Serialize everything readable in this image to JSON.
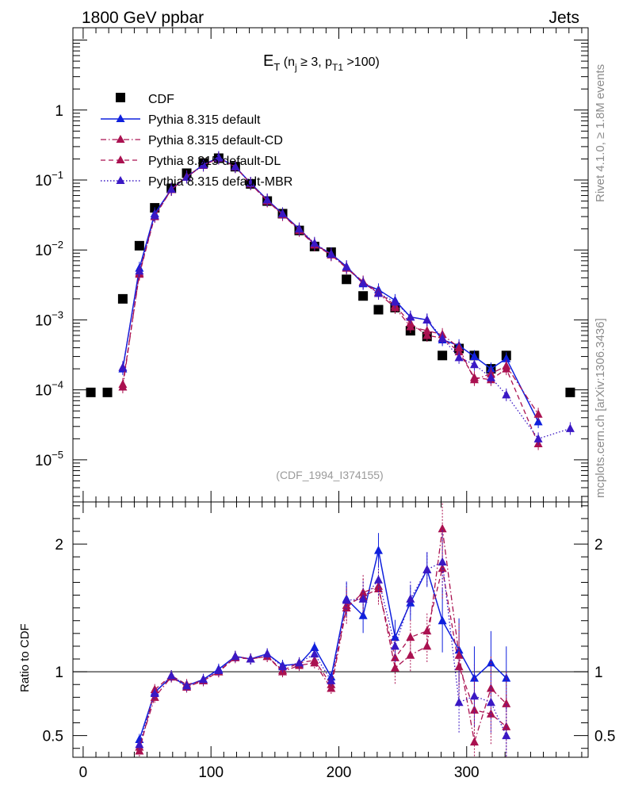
{
  "header": {
    "left": "1800 GeV ppbar",
    "right": "Jets"
  },
  "side_text": {
    "top": "Rivet 4.1.0, ≥ 1.8M events",
    "bottom": "mcplots.cern.ch [arXiv:1306.3436]"
  },
  "watermark": "(CDF_1994_I374155)",
  "ratio_ylabel": "Ratio to CDF",
  "chart_data": [
    {
      "type": "scatter",
      "panel": "main",
      "title": "E_T (n_j ≥ 3, p_T1 >100)",
      "title_parts": {
        "main": "E",
        "sub1": "T",
        "open": " (n",
        "sub2": "j",
        "mid": " ≥ 3, p",
        "sub3": "T1",
        "close": " >100)"
      },
      "yscale": "log",
      "xlim": [
        -8,
        395
      ],
      "ylim": [
        2.5e-06,
        15
      ],
      "ytick_labels": [
        {
          "value": 1,
          "base": "1",
          "exp": ""
        },
        {
          "value": 0.1,
          "base": "10",
          "exp": "−1"
        },
        {
          "value": 0.01,
          "base": "10",
          "exp": "−2"
        },
        {
          "value": 0.001,
          "base": "10",
          "exp": "−3"
        },
        {
          "value": 0.0001,
          "base": "10",
          "exp": "−4"
        },
        {
          "value": 1e-05,
          "base": "10",
          "exp": "−5"
        }
      ],
      "series": [
        {
          "name": "CDF",
          "color": "#000000",
          "marker": "square",
          "line": "none",
          "x": [
            6,
            19,
            31,
            44,
            56,
            69,
            81,
            94,
            106,
            119,
            131,
            144,
            156,
            169,
            181,
            194,
            206,
            219,
            231,
            244,
            256,
            269,
            281,
            294,
            306,
            319,
            331,
            381
          ],
          "y": [
            9.2e-05,
            9.2e-05,
            0.002,
            0.0115,
            0.04,
            0.076,
            0.125,
            0.175,
            0.205,
            0.155,
            0.088,
            0.05,
            0.033,
            0.019,
            0.0112,
            0.0093,
            0.0038,
            0.0022,
            0.0014,
            0.0015,
            0.0007,
            0.00058,
            0.00031,
            0.00039,
            0.00031,
            0.0002,
            0.00031,
            9.2e-05
          ]
        },
        {
          "name": "Pythia 8.315 default",
          "color": "#0f20dd",
          "marker": "triangle",
          "line": "solid",
          "x": [
            31,
            44,
            56,
            69,
            81,
            94,
            106,
            119,
            131,
            144,
            156,
            169,
            181,
            194,
            206,
            219,
            231,
            244,
            256,
            269,
            281,
            294,
            306,
            319,
            331,
            356,
            381
          ],
          "y": [
            0.0002,
            0.0055,
            0.033,
            0.074,
            0.111,
            0.165,
            0.21,
            0.155,
            0.09,
            0.052,
            0.033,
            0.02,
            0.012,
            0.0088,
            0.0058,
            0.0033,
            0.0027,
            0.0019,
            0.0011,
            0.001,
            0.00052,
            0.00043,
            0.0003,
            0.0002,
            0.00028,
            3.5e-05,
            null
          ]
        },
        {
          "name": "Pythia 8.315 default-CD",
          "color": "#aa1150",
          "marker": "triangle",
          "line": "dashdot",
          "x": [
            31,
            44,
            56,
            69,
            81,
            94,
            106,
            119,
            131,
            144,
            156,
            169,
            181,
            194,
            206,
            219,
            231,
            244,
            256,
            269,
            281,
            294,
            306,
            319,
            331,
            356,
            381
          ],
          "y": [
            0.00011,
            0.0047,
            0.031,
            0.073,
            0.11,
            0.162,
            0.205,
            0.155,
            0.088,
            0.05,
            0.032,
            0.019,
            0.0118,
            0.0085,
            0.0055,
            0.0034,
            0.0024,
            0.0015,
            0.0008,
            0.0007,
            0.00062,
            0.0004,
            0.00014,
            0.00017,
            0.00022,
            4.5e-05,
            null
          ]
        },
        {
          "name": "Pythia 8.315 default-DL",
          "color": "#aa1150",
          "marker": "triangle",
          "line": "dashed",
          "x": [
            31,
            44,
            56,
            69,
            81,
            94,
            106,
            119,
            131,
            144,
            156,
            169,
            181,
            194,
            206,
            219,
            231,
            244,
            256,
            269,
            281,
            294,
            306,
            319,
            331,
            356,
            381
          ],
          "y": [
            0.00012,
            0.0045,
            0.03,
            0.073,
            0.112,
            0.163,
            0.205,
            0.155,
            0.089,
            0.051,
            0.032,
            0.02,
            0.0122,
            0.0086,
            0.0056,
            0.0035,
            0.0025,
            0.0016,
            0.0009,
            0.0006,
            0.00055,
            0.00035,
            0.00015,
            0.00014,
            0.0002,
            1.7e-05,
            null
          ]
        },
        {
          "name": "Pythia 8.315 default-MBR",
          "color": "#3a18c4",
          "marker": "triangle",
          "line": "dotted",
          "x": [
            31,
            44,
            56,
            69,
            81,
            94,
            106,
            119,
            131,
            144,
            156,
            169,
            181,
            194,
            206,
            219,
            231,
            244,
            256,
            269,
            281,
            294,
            306,
            319,
            331,
            356,
            381
          ],
          "y": [
            0.00021,
            0.005,
            0.031,
            0.074,
            0.11,
            0.164,
            0.207,
            0.156,
            0.09,
            0.052,
            0.033,
            0.02,
            0.0125,
            0.0087,
            0.0057,
            0.0034,
            0.0024,
            0.0018,
            0.0011,
            0.001,
            0.00055,
            0.00029,
            0.00023,
            0.00015,
            8.5e-05,
            2e-05,
            2.8e-05
          ]
        }
      ]
    },
    {
      "type": "scatter",
      "panel": "ratio",
      "ylabel": "Ratio to CDF",
      "xlim": [
        -8,
        395
      ],
      "ylim": [
        0.33,
        2.33
      ],
      "xticks": [
        0,
        100,
        200,
        300
      ],
      "yticks": [
        0.5,
        1,
        2
      ],
      "reference_line": 1,
      "series": [
        {
          "name": "Pythia 8.315 default",
          "color": "#0f20dd",
          "line": "solid",
          "x": [
            44,
            56,
            69,
            81,
            94,
            106,
            119,
            131,
            144,
            156,
            169,
            181,
            194,
            206,
            219,
            231,
            244,
            256,
            269,
            281,
            294,
            306,
            319,
            331
          ],
          "y": [
            0.47,
            0.84,
            0.96,
            0.89,
            0.94,
            1.02,
            1.12,
            1.1,
            1.14,
            1.05,
            1.06,
            1.19,
            0.96,
            1.57,
            1.44,
            1.95,
            1.27,
            1.54,
            1.8,
            1.4,
            1.17,
            0.95,
            1.07,
            0.95
          ]
        },
        {
          "name": "Pythia 8.315 default-CD",
          "color": "#aa1150",
          "line": "dashdot",
          "x": [
            44,
            56,
            69,
            81,
            94,
            106,
            119,
            131,
            144,
            156,
            169,
            181,
            194,
            206,
            219,
            231,
            244,
            256,
            269,
            281,
            294,
            306,
            319,
            331
          ],
          "y": [
            0.41,
            0.8,
            0.96,
            0.88,
            0.93,
            1.0,
            1.12,
            1.1,
            1.12,
            1.0,
            1.05,
            1.07,
            0.87,
            1.5,
            1.62,
            1.67,
            1.03,
            1.13,
            1.2,
            2.12,
            1.13,
            0.45,
            0.87,
            0.75
          ]
        },
        {
          "name": "Pythia 8.315 default-DL",
          "color": "#aa1150",
          "line": "dashed",
          "x": [
            44,
            56,
            69,
            81,
            94,
            106,
            119,
            131,
            144,
            156,
            169,
            181,
            194,
            206,
            219,
            231,
            244,
            256,
            269,
            281,
            294,
            306,
            319,
            331
          ],
          "y": [
            0.38,
            0.86,
            0.97,
            0.9,
            0.93,
            1.0,
            1.11,
            1.1,
            1.12,
            1.01,
            1.07,
            1.09,
            0.9,
            1.52,
            1.59,
            1.65,
            1.11,
            1.27,
            1.32,
            1.81,
            1.04,
            0.7,
            0.67,
            0.57
          ]
        },
        {
          "name": "Pythia 8.315 default-MBR",
          "color": "#3a18c4",
          "line": "dotted",
          "x": [
            44,
            56,
            69,
            81,
            94,
            106,
            119,
            131,
            144,
            156,
            169,
            181,
            194,
            206,
            219,
            231,
            244,
            256,
            269,
            281,
            294,
            306,
            319,
            331
          ],
          "y": [
            0.43,
            0.83,
            0.97,
            0.89,
            0.94,
            1.01,
            1.12,
            1.1,
            1.14,
            1.04,
            1.07,
            1.14,
            0.93,
            1.56,
            1.57,
            1.72,
            1.2,
            1.57,
            1.8,
            1.86,
            0.76,
            0.81,
            0.76,
            0.5
          ]
        }
      ]
    }
  ]
}
